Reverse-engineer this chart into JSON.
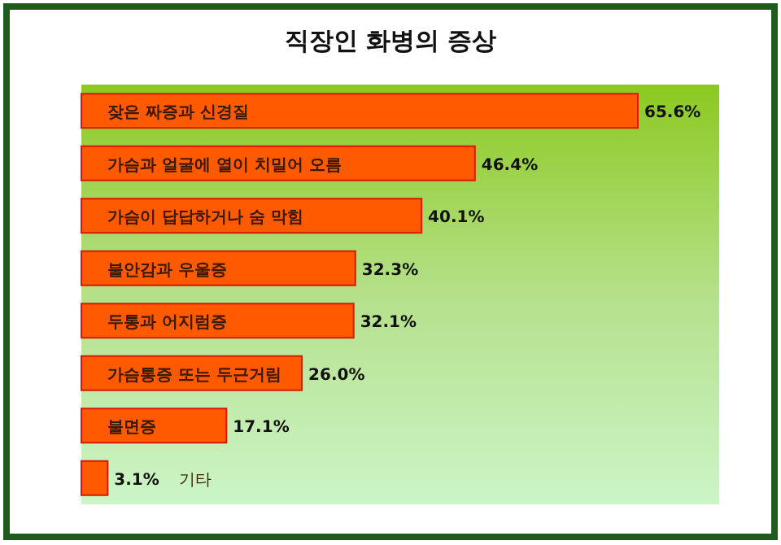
{
  "chart_data": {
    "type": "bar",
    "orientation": "horizontal",
    "title": "직장인 화병의 증상",
    "categories": [
      "잦은 짜증과 신경질",
      "가슴과 얼굴에 열이 치밀어 오름",
      "가슴이 답답하거나 숨 막힘",
      "불안감과 우울증",
      "두통과 어지럼증",
      "가슴통증 또는 두근거림",
      "불면증",
      "기타"
    ],
    "values": [
      65.6,
      46.4,
      40.1,
      32.3,
      32.1,
      26.0,
      17.1,
      3.1
    ],
    "value_labels": [
      "65.6%",
      "46.4%",
      "40.1%",
      "32.3%",
      "32.1%",
      "26.0%",
      "17.1%",
      "3.1%"
    ],
    "color": "#ff5a00"
  }
}
